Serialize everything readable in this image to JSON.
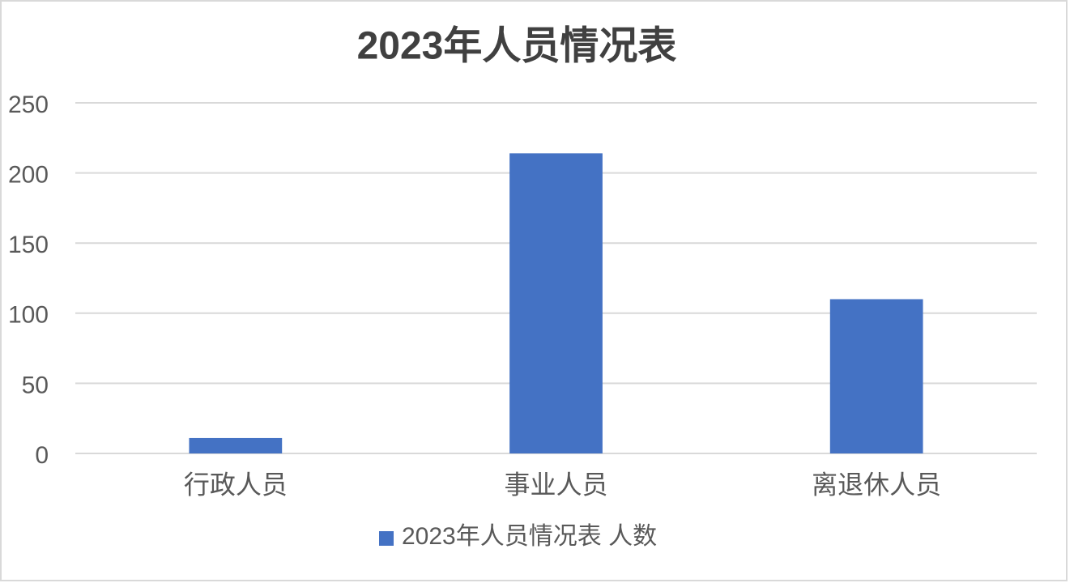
{
  "chart_data": {
    "type": "bar",
    "title": "2023年人员情况表",
    "categories": [
      "行政人员",
      "事业人员",
      "离退休人员"
    ],
    "series": [
      {
        "name": "2023年人员情况表 人数",
        "color": "#4472c4",
        "values": [
          11,
          214,
          110
        ]
      }
    ],
    "ylim": [
      0,
      250
    ],
    "yticks": [
      0,
      50,
      100,
      150,
      200,
      250
    ],
    "grid": true,
    "legend": "bottom"
  }
}
